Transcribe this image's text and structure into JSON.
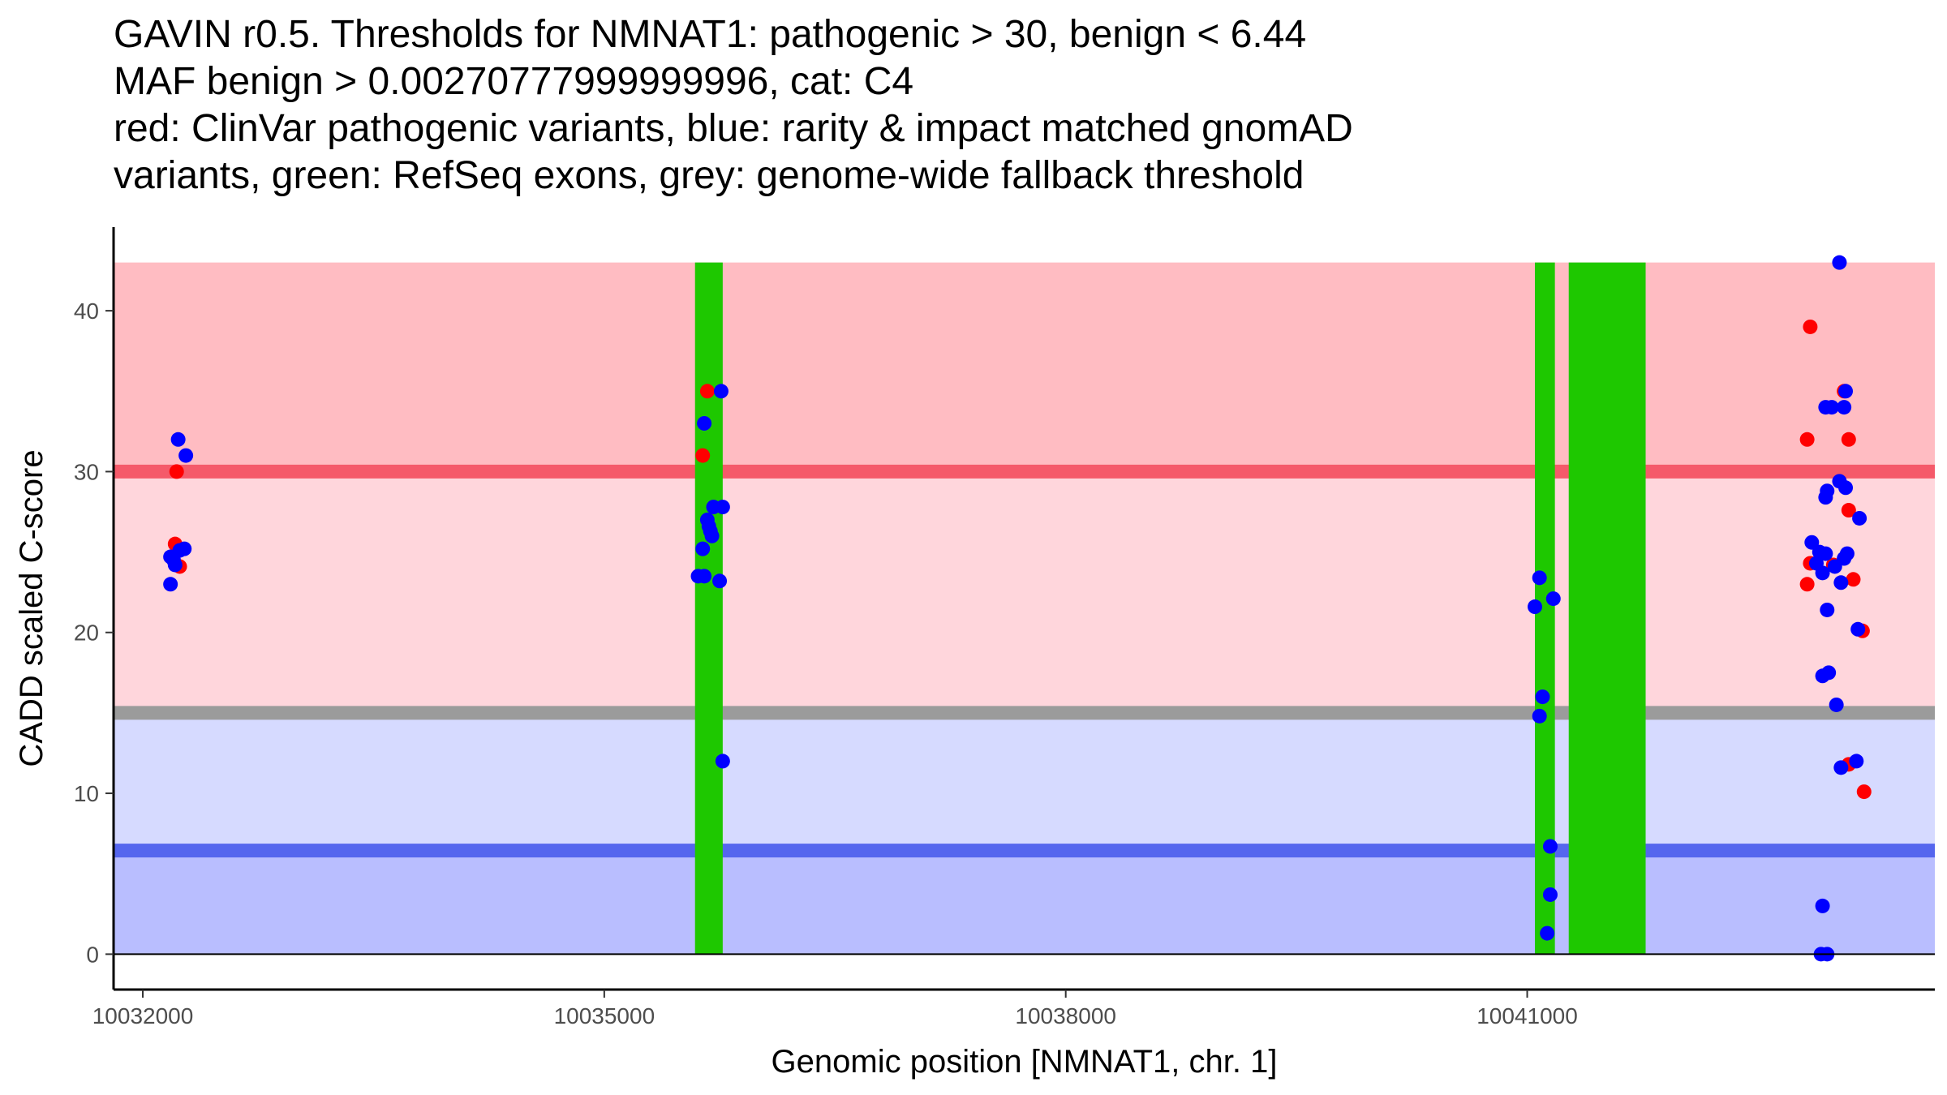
{
  "chart_data": {
    "type": "scatter",
    "title_lines": [
      "GAVIN r0.5. Thresholds for NMNAT1: pathogenic > 30, benign < 6.44",
      "MAF benign > 0.00270777999999996, cat: C4",
      "red: ClinVar pathogenic variants, blue: rarity & impact matched gnomAD",
      "variants, green: RefSeq exons, grey: genome-wide fallback threshold"
    ],
    "xlabel": "Genomic position [NMNAT1, chr. 1]",
    "ylabel": "CADD scaled C-score",
    "xlim": [
      10031810,
      10043650
    ],
    "ylim": [
      -2.2,
      45.2
    ],
    "x_ticks": [
      10032000,
      10035000,
      10038000,
      10041000
    ],
    "x_tick_labels": [
      "10032000",
      "10035000",
      "10038000",
      "10041000"
    ],
    "y_ticks": [
      0,
      10,
      20,
      30,
      40
    ],
    "y_tick_labels": [
      "0",
      "10",
      "20",
      "30",
      "40"
    ],
    "plot_x_range": [
      10031810,
      10043650
    ],
    "bands": [
      {
        "name": "pathogenic-zone",
        "y0": 30,
        "y1": 43,
        "color": "#ffbcc2"
      },
      {
        "name": "intermediate-upper-zone",
        "y0": 15.0,
        "y1": 30,
        "color": "#ffd6dc"
      },
      {
        "name": "intermediate-lower-zone",
        "y0": 6.44,
        "y1": 15.0,
        "color": "#d6daff"
      },
      {
        "name": "benign-zone",
        "y0": 0,
        "y1": 6.44,
        "color": "#b9beff"
      }
    ],
    "threshold_lines": [
      {
        "name": "pathogenic-threshold-line",
        "y": 30,
        "color": "#f55a6a"
      },
      {
        "name": "fallback-threshold-line",
        "y": 15.0,
        "color": "#9b9b9b"
      },
      {
        "name": "benign-threshold-line",
        "y": 6.44,
        "color": "#5566ee"
      }
    ],
    "exons": [
      {
        "start": 10035590,
        "end": 10035770
      },
      {
        "start": 10041050,
        "end": 10041180
      },
      {
        "start": 10041270,
        "end": 10041770
      }
    ],
    "colors": {
      "pathogenic": "#ff0000",
      "benign": "#0000ff",
      "exon": "#1ec800"
    },
    "series": [
      {
        "name": "ClinVar pathogenic",
        "color": "#ff0000",
        "points": [
          [
            10032220,
            30.0
          ],
          [
            10032210,
            25.5
          ],
          [
            10032240,
            24.1
          ],
          [
            10035670,
            35.0
          ],
          [
            10035640,
            31.0
          ],
          [
            10042840,
            39.0
          ],
          [
            10043060,
            35.0
          ],
          [
            10042820,
            32.0
          ],
          [
            10043090,
            32.0
          ],
          [
            10043090,
            27.6
          ],
          [
            10042840,
            24.3
          ],
          [
            10042990,
            24.2
          ],
          [
            10042820,
            23.0
          ],
          [
            10043120,
            23.3
          ],
          [
            10043180,
            20.1
          ],
          [
            10043090,
            11.8
          ],
          [
            10043190,
            10.1
          ]
        ]
      },
      {
        "name": "gnomAD matched",
        "color": "#0000ff",
        "points": [
          [
            10032230,
            32.0
          ],
          [
            10032280,
            31.0
          ],
          [
            10032270,
            25.2
          ],
          [
            10032240,
            25.1
          ],
          [
            10032180,
            24.7
          ],
          [
            10032200,
            24.5
          ],
          [
            10032210,
            24.2
          ],
          [
            10032180,
            23.0
          ],
          [
            10035760,
            35.0
          ],
          [
            10035650,
            33.0
          ],
          [
            10035710,
            27.8
          ],
          [
            10035770,
            27.8
          ],
          [
            10035670,
            27.0
          ],
          [
            10035680,
            26.6
          ],
          [
            10035690,
            26.3
          ],
          [
            10035700,
            26.0
          ],
          [
            10035640,
            25.2
          ],
          [
            10035610,
            23.5
          ],
          [
            10035650,
            23.5
          ],
          [
            10035750,
            23.2
          ],
          [
            10035770,
            12.0
          ],
          [
            10041080,
            23.4
          ],
          [
            10041170,
            22.1
          ],
          [
            10041050,
            21.6
          ],
          [
            10041100,
            16.0
          ],
          [
            10041080,
            14.8
          ],
          [
            10041150,
            6.7
          ],
          [
            10041150,
            3.7
          ],
          [
            10041130,
            1.3
          ],
          [
            10043030,
            43.0
          ],
          [
            10043070,
            35.0
          ],
          [
            10042940,
            34.0
          ],
          [
            10042980,
            34.0
          ],
          [
            10043060,
            34.0
          ],
          [
            10043030,
            29.4
          ],
          [
            10043070,
            29.0
          ],
          [
            10042950,
            28.8
          ],
          [
            10042940,
            28.4
          ],
          [
            10043160,
            27.1
          ],
          [
            10042850,
            25.6
          ],
          [
            10042900,
            25.0
          ],
          [
            10042940,
            24.9
          ],
          [
            10043080,
            24.9
          ],
          [
            10043060,
            24.6
          ],
          [
            10042880,
            24.3
          ],
          [
            10043000,
            24.1
          ],
          [
            10042920,
            23.7
          ],
          [
            10043040,
            23.1
          ],
          [
            10042950,
            21.4
          ],
          [
            10043150,
            20.2
          ],
          [
            10042960,
            17.5
          ],
          [
            10042920,
            17.3
          ],
          [
            10043010,
            15.5
          ],
          [
            10043140,
            12.0
          ],
          [
            10043040,
            11.6
          ],
          [
            10042920,
            3.0
          ],
          [
            10042910,
            0.0
          ],
          [
            10042950,
            0.0
          ]
        ]
      }
    ]
  }
}
